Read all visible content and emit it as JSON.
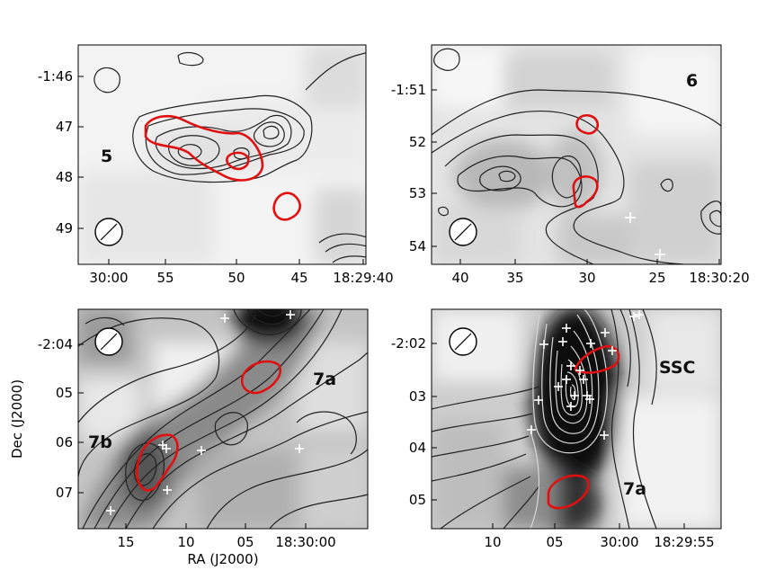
{
  "panels": [
    {
      "id": "p5",
      "label": "5",
      "dec_ticks": [
        "-1:46",
        "47",
        "48",
        "49"
      ],
      "ra_ticks": [
        "30:00",
        "55",
        "50",
        "45",
        "18:29:40"
      ]
    },
    {
      "id": "p6",
      "label": "6",
      "dec_ticks": [
        "-1:51",
        "52",
        "53",
        "54"
      ],
      "ra_ticks": [
        "40",
        "35",
        "30",
        "25",
        "18:30:20"
      ]
    },
    {
      "id": "p7b",
      "labels": [
        "7b",
        "7a"
      ],
      "dec_ticks": [
        "-2:04",
        "05",
        "06",
        "07"
      ],
      "ra_ticks": [
        "15",
        "10",
        "05",
        "18:30:00"
      ]
    },
    {
      "id": "pssc",
      "labels": [
        "SSC",
        "7a"
      ],
      "dec_ticks": [
        "-2:02",
        "03",
        "04",
        "05"
      ],
      "ra_ticks": [
        "10",
        "05",
        "30:00",
        "18:29:55"
      ]
    }
  ],
  "axes": {
    "xlabel": "RA (J2000)",
    "ylabel": "Dec (J2000)"
  },
  "colors": {
    "contour": "#222222",
    "red_contour": "#e01010",
    "sources": "#ffffff"
  }
}
